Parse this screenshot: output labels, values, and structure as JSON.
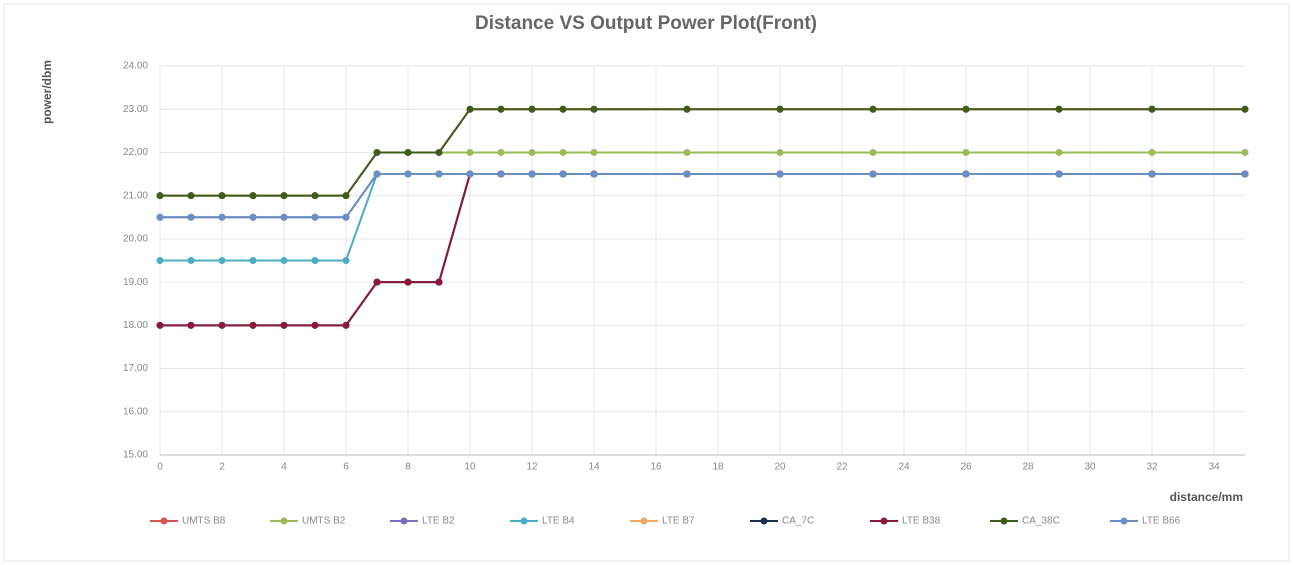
{
  "chart_data": {
    "type": "line",
    "title": "Distance VS Output Power Plot(Front)",
    "y_label": "power/dbm",
    "x_label": "distance/mm",
    "x": [
      0,
      1,
      2,
      3,
      4,
      5,
      6,
      7,
      8,
      9,
      10,
      11,
      12,
      13,
      14,
      17,
      20,
      23,
      26,
      29,
      32,
      35
    ],
    "xlim": [
      0,
      35
    ],
    "xticks": [
      0,
      2,
      4,
      6,
      8,
      10,
      12,
      14,
      16,
      18,
      20,
      22,
      24,
      26,
      28,
      30,
      32,
      34
    ],
    "ylim": [
      15,
      24
    ],
    "yticks": [
      {
        "value": 15,
        "label": "15.00"
      },
      {
        "value": 16,
        "label": "16.00"
      },
      {
        "value": 17,
        "label": "17.00"
      },
      {
        "value": 18,
        "label": "18.00"
      },
      {
        "value": 19,
        "label": "19.00"
      },
      {
        "value": 20,
        "label": "20.00"
      },
      {
        "value": 21,
        "label": "21.00"
      },
      {
        "value": 22,
        "label": "22.00"
      },
      {
        "value": 23,
        "label": "23.00"
      },
      {
        "value": 24,
        "label": "24.00"
      }
    ],
    "grid": true,
    "legend": "bottom",
    "series": [
      {
        "name": "UMTS B8",
        "color": "#d9534f",
        "values": [
          21,
          21,
          21,
          21,
          21,
          21,
          21,
          22,
          22,
          22,
          23,
          23,
          23,
          23,
          23,
          23,
          23,
          23,
          23,
          23,
          23,
          23
        ]
      },
      {
        "name": "UMTS B2",
        "color": "#9bbb59",
        "values": [
          21,
          21,
          21,
          21,
          21,
          21,
          21,
          22,
          22,
          22,
          22,
          22,
          22,
          22,
          22,
          22,
          22,
          22,
          22,
          22,
          22,
          22
        ]
      },
      {
        "name": "LTE B2",
        "color": "#7b6fc4",
        "values": [
          20.5,
          20.5,
          20.5,
          20.5,
          20.5,
          20.5,
          20.5,
          21.5,
          21.5,
          21.5,
          21.5,
          21.5,
          21.5,
          21.5,
          21.5,
          21.5,
          21.5,
          21.5,
          21.5,
          21.5,
          21.5,
          21.5
        ]
      },
      {
        "name": "LTE B4",
        "color": "#4bacc6",
        "values": [
          19.5,
          19.5,
          19.5,
          19.5,
          19.5,
          19.5,
          19.5,
          21.5,
          21.5,
          21.5,
          21.5,
          21.5,
          21.5,
          21.5,
          21.5,
          21.5,
          21.5,
          21.5,
          21.5,
          21.5,
          21.5,
          21.5
        ]
      },
      {
        "name": "LTE B7",
        "color": "#f0a860",
        "values": [
          21,
          21,
          21,
          21,
          21,
          21,
          21,
          22,
          22,
          22,
          23,
          23,
          23,
          23,
          23,
          23,
          23,
          23,
          23,
          23,
          23,
          23
        ]
      },
      {
        "name": "CA_7C",
        "color": "#1f2d4d",
        "values": [
          18,
          18,
          18,
          18,
          18,
          18,
          18,
          19,
          19,
          19,
          21.5,
          21.5,
          21.5,
          21.5,
          21.5,
          21.5,
          21.5,
          21.5,
          21.5,
          21.5,
          21.5,
          21.5
        ]
      },
      {
        "name": "LTE B38",
        "color": "#8b1a3a",
        "values": [
          18,
          18,
          18,
          18,
          18,
          18,
          18,
          19,
          19,
          19,
          21.5,
          21.5,
          21.5,
          21.5,
          21.5,
          21.5,
          21.5,
          21.5,
          21.5,
          21.5,
          21.5,
          21.5
        ]
      },
      {
        "name": "CA_38C",
        "color": "#3d5c1e",
        "values": [
          21,
          21,
          21,
          21,
          21,
          21,
          21,
          22,
          22,
          22,
          23,
          23,
          23,
          23,
          23,
          23,
          23,
          23,
          23,
          23,
          23,
          23
        ]
      },
      {
        "name": "LTE B66",
        "color": "#6a8fc4",
        "values": [
          20.5,
          20.5,
          20.5,
          20.5,
          20.5,
          20.5,
          20.5,
          21.5,
          21.5,
          21.5,
          21.5,
          21.5,
          21.5,
          21.5,
          21.5,
          21.5,
          21.5,
          21.5,
          21.5,
          21.5,
          21.5,
          21.5
        ]
      }
    ]
  }
}
